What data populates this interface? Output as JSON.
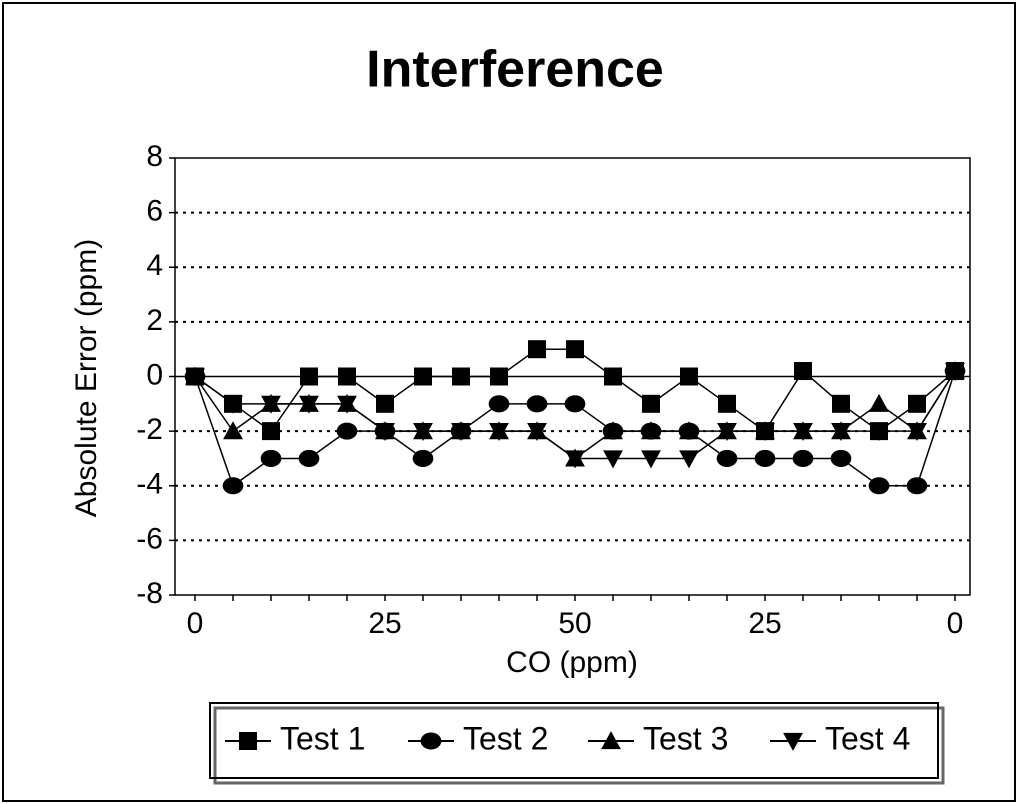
{
  "chart_data": {
    "type": "line",
    "title": "Interference",
    "x_label": "CO (ppm)",
    "y_label": "Absolute Error (ppm)",
    "categories": [
      "0",
      null,
      null,
      null,
      null,
      "25",
      null,
      null,
      null,
      null,
      "50",
      null,
      null,
      null,
      null,
      "25",
      null,
      null,
      null,
      null,
      "0"
    ],
    "ylim": [
      -8,
      8
    ],
    "yticks": [
      -8,
      -6,
      -4,
      -2,
      0,
      2,
      4,
      6,
      8
    ],
    "grid": true,
    "series": [
      {
        "name": "Test 1",
        "color": "#000000",
        "marker": "square",
        "values": [
          0,
          -1,
          -2,
          0,
          0,
          -1,
          0,
          0,
          0,
          1,
          1,
          0,
          -1,
          0,
          -1,
          -2,
          0.2,
          -1,
          -2,
          -1,
          0.2
        ]
      },
      {
        "name": "Test 2",
        "color": "#000000",
        "marker": "circle",
        "values": [
          0,
          -4,
          -3,
          -3,
          -2,
          -2,
          -3,
          -2,
          -1,
          -1,
          -1,
          -2,
          -2,
          -2,
          -3,
          -3,
          -3,
          -3,
          -4,
          -4,
          0.2
        ]
      },
      {
        "name": "Test 3",
        "color": "#000000",
        "marker": "triangle-up",
        "values": [
          0,
          -2,
          -1,
          -1,
          -1,
          -2,
          -2,
          -2,
          -2,
          -2,
          -3,
          -2,
          -2,
          -2,
          -2,
          -2,
          -2,
          -2,
          -1,
          -2,
          0.2
        ]
      },
      {
        "name": "Test 4",
        "color": "#000000",
        "marker": "triangle-down",
        "values": [
          0,
          -1,
          -1,
          -1,
          -1,
          -2,
          -2,
          -2,
          -2,
          -2,
          -3,
          -3,
          -3,
          -3,
          -2,
          -2,
          -2,
          -2,
          -2,
          -2,
          0.2
        ]
      }
    ]
  }
}
